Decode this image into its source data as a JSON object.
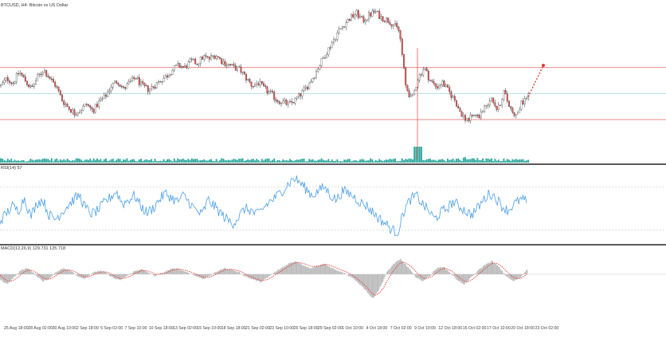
{
  "symbol_label": "BTCUSD, H4: Bitcoin vs US Dollar",
  "rsi_label": "RSI(14) 57",
  "macd_label": "MACD(12,26,9) 129.731 125.718",
  "time_ticks": [
    "25 Aug 18:00",
    "28 Aug 02:00",
    "30 Aug 10:00",
    "2 Sep 18:00",
    "5 Sep 02:00",
    "7 Sep 10:00",
    "10 Sep 18:00",
    "13 Sep 02:00",
    "15 Sep 10:00",
    "18 Sep 18:00",
    "21 Sep 02:00",
    "23 Sep 10:00",
    "26 Sep 18:00",
    "29 Sep 02:00",
    "1 Oct 10:00",
    "4 Oct 18:00",
    "7 Oct 02:00",
    "9 Oct 10:00",
    "12 Oct 18:00",
    "15 Oct 02:00",
    "17 Oct 10:00",
    "20 Oct 18:00",
    "23 Oct 02:00"
  ],
  "colors": {
    "bull": "#26a69a",
    "bear": "#ef5350",
    "hline_red": "#e06060",
    "hline_cyan": "#9fd8dc",
    "rsi_line": "#4a9ee8",
    "macd_hist": "#bdbdbd",
    "macd_signal": "#e53935",
    "volume": "#26a69a",
    "separator": "#5a5a5a"
  },
  "icons": [
    "projection-arrow-icon"
  ],
  "chart_data": [
    {
      "type": "candlestick",
      "title": "BTCUSD, H4: Bitcoin vs US Dollar",
      "x": "time",
      "price_path": [
        0.55,
        0.62,
        0.58,
        0.68,
        0.6,
        0.52,
        0.63,
        0.7,
        0.62,
        0.55,
        0.42,
        0.35,
        0.3,
        0.33,
        0.38,
        0.32,
        0.4,
        0.45,
        0.55,
        0.6,
        0.52,
        0.58,
        0.63,
        0.55,
        0.52,
        0.55,
        0.6,
        0.64,
        0.7,
        0.74,
        0.72,
        0.78,
        0.76,
        0.82,
        0.8,
        0.84,
        0.78,
        0.75,
        0.72,
        0.7,
        0.62,
        0.55,
        0.58,
        0.52,
        0.48,
        0.42,
        0.4,
        0.38,
        0.42,
        0.48,
        0.55,
        0.64,
        0.75,
        0.85,
        0.95,
        1.05,
        1.12,
        1.18,
        1.22,
        1.15,
        1.2,
        1.24,
        1.18,
        1.16,
        1.12,
        1.05,
        0.55,
        0.42,
        0.62,
        0.72,
        0.6,
        0.54,
        0.58,
        0.5,
        0.42,
        0.3,
        0.24,
        0.26,
        0.28,
        0.36,
        0.45,
        0.32,
        0.5,
        0.35,
        0.28,
        0.4,
        0.46
      ],
      "horizontal_lines": [
        {
          "name": "resistance",
          "level": 0.72
        },
        {
          "name": "mid",
          "level": 0.48
        },
        {
          "name": "support",
          "level": 0.24
        }
      ]
    },
    {
      "type": "line",
      "title": "RSI(14) 57",
      "series": [
        {
          "values": [
            38,
            45,
            52,
            48,
            60,
            42,
            55,
            58,
            44,
            40,
            46,
            52,
            58,
            62,
            50,
            45,
            48,
            55,
            60,
            66,
            54,
            58,
            62,
            52,
            46,
            50,
            58,
            64,
            60,
            56,
            62,
            55,
            48,
            44,
            58,
            52,
            46,
            40,
            36,
            42,
            50,
            48,
            44,
            50,
            56,
            60,
            66,
            72,
            78,
            74,
            68,
            62,
            66,
            70,
            62,
            58,
            66,
            64,
            60,
            55,
            52,
            46,
            40,
            36,
            30,
            28,
            48,
            58,
            62,
            54,
            48,
            40,
            46,
            50,
            56,
            52,
            48,
            44,
            50,
            58,
            64,
            60,
            52,
            48,
            54,
            58,
            57
          ]
        }
      ],
      "ylim": [
        20,
        85
      ]
    },
    {
      "type": "bar",
      "title": "MACD(12,26,9) 129.731 125.718",
      "series": [
        {
          "values": [
            -0.35,
            -0.55,
            -0.15,
            0.25,
            0.35,
            -0.05,
            -0.4,
            -0.25,
            0.15,
            0.35,
            0.2,
            -0.1,
            -0.25,
            0.05,
            0.2,
            0.1,
            -0.2,
            -0.35,
            -0.1,
            0.15,
            0.3,
            0.1,
            -0.1,
            0.05,
            0.25,
            0.35,
            0.2,
            0.05,
            -0.15,
            -0.25,
            -0.05,
            0.2,
            0.35,
            0.25,
            0.1,
            -0.15,
            -0.3,
            -0.45,
            -0.2,
            0.1,
            0.35,
            0.6,
            0.75,
            0.55,
            0.35,
            0.45,
            0.6,
            0.4,
            0.2,
            0.05,
            -0.2,
            -0.5,
            -0.9,
            -1.4,
            -0.8,
            0.1,
            0.6,
            0.85,
            0.4,
            -0.1,
            -0.4,
            -0.15,
            0.3,
            0.45,
            0.1,
            -0.3,
            -0.6,
            -0.2,
            0.2,
            0.55,
            0.75,
            0.4,
            -0.1,
            -0.4,
            -0.2,
            0.3
          ]
        }
      ]
    }
  ]
}
